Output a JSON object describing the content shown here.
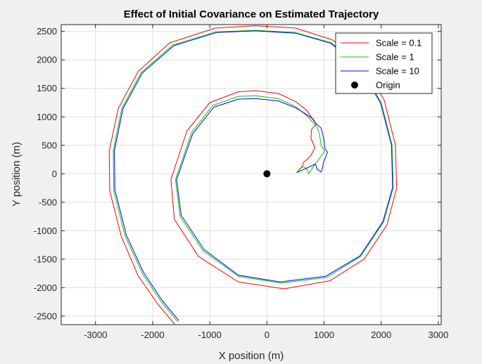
{
  "chart_data": {
    "type": "line",
    "title": "Effect of Initial Covariance on Estimated Trajectory",
    "xlabel": "X position (m)",
    "ylabel": "Y position (m)",
    "xlim": [
      -3600,
      3050
    ],
    "ylim": [
      -2650,
      2620
    ],
    "xticks": [
      -3000,
      -2000,
      -1000,
      0,
      1000,
      2000,
      3000
    ],
    "xtick_labels": [
      "-3000",
      "-2000",
      "-1000",
      "0",
      "1000",
      "2000",
      "3000"
    ],
    "yticks": [
      -2500,
      -2000,
      -1500,
      -1000,
      -500,
      0,
      500,
      1000,
      1500,
      2000,
      2500
    ],
    "ytick_labels": [
      "-2500",
      "-2000",
      "-1500",
      "-1000",
      "-500",
      "0",
      "500",
      "1000",
      "1500",
      "2000",
      "2500"
    ],
    "grid": true,
    "legend_position": "top-right",
    "series": [
      {
        "name": "Scale = 0.1",
        "color": "#ff0000",
        "points": [
          [
            -1610,
            -2650
          ],
          [
            -1900,
            -2300
          ],
          [
            -2250,
            -1800
          ],
          [
            -2550,
            -1100
          ],
          [
            -2750,
            -300
          ],
          [
            -2760,
            400
          ],
          [
            -2600,
            1150
          ],
          [
            -2250,
            1800
          ],
          [
            -1700,
            2300
          ],
          [
            -900,
            2560
          ],
          [
            -200,
            2600
          ],
          [
            500,
            2560
          ],
          [
            1150,
            2350
          ],
          [
            1650,
            1950
          ],
          [
            2050,
            1300
          ],
          [
            2250,
            500
          ],
          [
            2270,
            -250
          ],
          [
            2100,
            -900
          ],
          [
            1700,
            -1500
          ],
          [
            1100,
            -1880
          ],
          [
            300,
            -2020
          ],
          [
            -500,
            -1900
          ],
          [
            -1200,
            -1450
          ],
          [
            -1620,
            -800
          ],
          [
            -1680,
            -100
          ],
          [
            -1400,
            750
          ],
          [
            -1000,
            1250
          ],
          [
            -500,
            1440
          ],
          [
            -200,
            1460
          ],
          [
            200,
            1410
          ],
          [
            500,
            1270
          ],
          [
            700,
            1110
          ],
          [
            860,
            870
          ],
          [
            780,
            780
          ],
          [
            770,
            620
          ],
          [
            840,
            460
          ],
          [
            770,
            320
          ],
          [
            700,
            250
          ],
          [
            640,
            200
          ],
          [
            620,
            130
          ],
          [
            570,
            80
          ],
          [
            520,
            20
          ]
        ]
      },
      {
        "name": "Scale = 1",
        "color": "#00cc00",
        "points": [
          [
            -1560,
            -2600
          ],
          [
            -1850,
            -2250
          ],
          [
            -2180,
            -1750
          ],
          [
            -2480,
            -1100
          ],
          [
            -2680,
            -300
          ],
          [
            -2690,
            400
          ],
          [
            -2540,
            1150
          ],
          [
            -2200,
            1780
          ],
          [
            -1650,
            2260
          ],
          [
            -900,
            2490
          ],
          [
            -200,
            2520
          ],
          [
            500,
            2480
          ],
          [
            1130,
            2300
          ],
          [
            1620,
            1900
          ],
          [
            2000,
            1250
          ],
          [
            2190,
            500
          ],
          [
            2210,
            -250
          ],
          [
            2040,
            -850
          ],
          [
            1640,
            -1450
          ],
          [
            1050,
            -1820
          ],
          [
            250,
            -1920
          ],
          [
            -500,
            -1800
          ],
          [
            -1120,
            -1350
          ],
          [
            -1520,
            -750
          ],
          [
            -1600,
            -100
          ],
          [
            -1320,
            720
          ],
          [
            -950,
            1200
          ],
          [
            -500,
            1360
          ],
          [
            -200,
            1370
          ],
          [
            200,
            1320
          ],
          [
            500,
            1180
          ],
          [
            700,
            1020
          ],
          [
            870,
            830
          ],
          [
            920,
            700
          ],
          [
            950,
            490
          ],
          [
            1010,
            400
          ],
          [
            950,
            310
          ],
          [
            850,
            180
          ],
          [
            730,
            0
          ],
          [
            700,
            80
          ],
          [
            640,
            130
          ],
          [
            580,
            80
          ],
          [
            520,
            20
          ]
        ]
      },
      {
        "name": "Scale = 10",
        "color": "#0000ff",
        "points": [
          [
            -1540,
            -2580
          ],
          [
            -1830,
            -2230
          ],
          [
            -2160,
            -1730
          ],
          [
            -2460,
            -1080
          ],
          [
            -2660,
            -280
          ],
          [
            -2670,
            400
          ],
          [
            -2520,
            1140
          ],
          [
            -2180,
            1770
          ],
          [
            -1630,
            2250
          ],
          [
            -880,
            2480
          ],
          [
            -200,
            2510
          ],
          [
            500,
            2470
          ],
          [
            1120,
            2290
          ],
          [
            1610,
            1890
          ],
          [
            1990,
            1240
          ],
          [
            2180,
            500
          ],
          [
            2200,
            -240
          ],
          [
            2030,
            -840
          ],
          [
            1630,
            -1440
          ],
          [
            1030,
            -1800
          ],
          [
            230,
            -1900
          ],
          [
            -500,
            -1780
          ],
          [
            -1100,
            -1330
          ],
          [
            -1500,
            -730
          ],
          [
            -1580,
            -100
          ],
          [
            -1300,
            700
          ],
          [
            -930,
            1170
          ],
          [
            -500,
            1310
          ],
          [
            -200,
            1320
          ],
          [
            200,
            1280
          ],
          [
            500,
            1160
          ],
          [
            650,
            1070
          ],
          [
            810,
            960
          ],
          [
            850,
            890
          ],
          [
            950,
            800
          ],
          [
            1000,
            600
          ],
          [
            1010,
            450
          ],
          [
            1060,
            380
          ],
          [
            1030,
            300
          ],
          [
            990,
            200
          ],
          [
            980,
            130
          ],
          [
            950,
            30
          ],
          [
            880,
            80
          ],
          [
            850,
            170
          ],
          [
            520,
            20
          ]
        ]
      }
    ],
    "markers": [
      {
        "name": "Origin",
        "color": "#000000",
        "x": 0,
        "y": 0
      }
    ]
  }
}
